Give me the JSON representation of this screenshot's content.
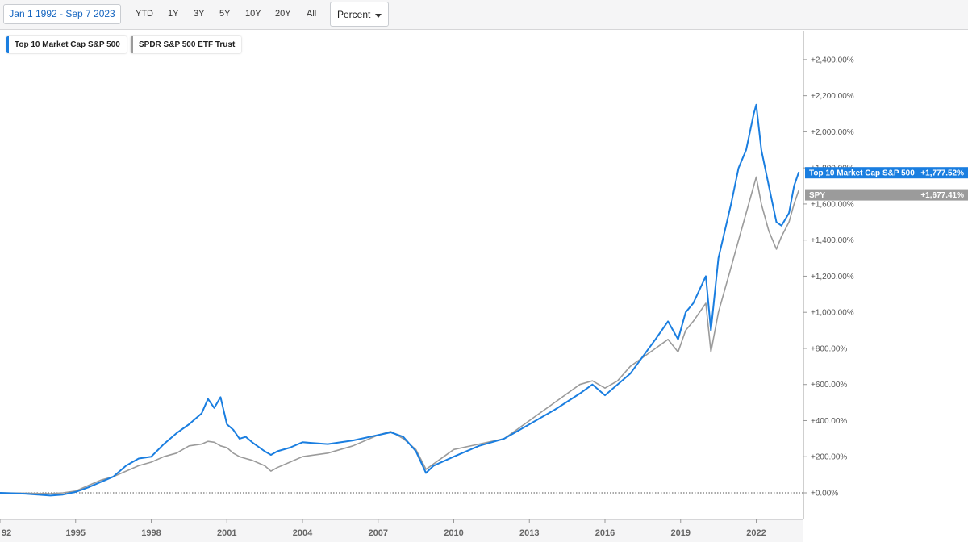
{
  "toolbar": {
    "date_range": "Jan 1 1992 - Sep 7 2023",
    "ranges": [
      "YTD",
      "1Y",
      "3Y",
      "5Y",
      "10Y",
      "20Y",
      "All"
    ],
    "scale_select": "Percent"
  },
  "legend": [
    {
      "label": "Top 10 Market Cap S&P 500",
      "color": "#1a7ee0"
    },
    {
      "label": "SPDR S&P 500 ETF Trust",
      "color": "#9b9b9b"
    }
  ],
  "colors": {
    "top10": "#1a7ee0",
    "spy": "#9b9b9b",
    "zero_line": "#555555"
  },
  "chart_data": {
    "type": "line",
    "xlabel": "",
    "ylabel": "",
    "ylim": [
      -20,
      2500
    ],
    "xlim": [
      1992,
      2023.69
    ],
    "x_ticks": [
      "92",
      "1995",
      "1998",
      "2001",
      "2004",
      "2007",
      "2010",
      "2013",
      "2016",
      "2019",
      "2022"
    ],
    "y_ticks": [
      "+0.00%",
      "+200.00%",
      "+400.00%",
      "+600.00%",
      "+800.00%",
      "+1,000.00%",
      "+1,200.00%",
      "+1,400.00%",
      "+1,600.00%",
      "+1,800.00%",
      "+2,000.00%",
      "+2,200.00%",
      "+2,400.00%"
    ],
    "zero_line": {
      "value": 0,
      "style": "dotted"
    },
    "grid": false,
    "series": [
      {
        "name": "Top 10 Market Cap S&P 500",
        "tag_label": "Top 10 Market Cap S&P 500",
        "last_value_label": "+1,777.52%",
        "last_value": 1777.52,
        "points": [
          [
            1992.0,
            0
          ],
          [
            1993.0,
            -5
          ],
          [
            1994.0,
            -15
          ],
          [
            1994.5,
            -10
          ],
          [
            1995.0,
            5
          ],
          [
            1995.5,
            30
          ],
          [
            1996.0,
            60
          ],
          [
            1996.5,
            90
          ],
          [
            1997.0,
            150
          ],
          [
            1997.5,
            190
          ],
          [
            1998.0,
            200
          ],
          [
            1998.5,
            270
          ],
          [
            1999.0,
            330
          ],
          [
            1999.5,
            380
          ],
          [
            2000.0,
            440
          ],
          [
            2000.25,
            520
          ],
          [
            2000.5,
            470
          ],
          [
            2000.75,
            530
          ],
          [
            2001.0,
            380
          ],
          [
            2001.25,
            350
          ],
          [
            2001.5,
            300
          ],
          [
            2001.75,
            310
          ],
          [
            2002.0,
            280
          ],
          [
            2002.5,
            230
          ],
          [
            2002.75,
            210
          ],
          [
            2003.0,
            230
          ],
          [
            2003.5,
            250
          ],
          [
            2004.0,
            280
          ],
          [
            2005.0,
            270
          ],
          [
            2006.0,
            290
          ],
          [
            2007.0,
            320
          ],
          [
            2007.5,
            335
          ],
          [
            2008.0,
            310
          ],
          [
            2008.5,
            230
          ],
          [
            2008.9,
            110
          ],
          [
            2009.2,
            150
          ],
          [
            2010.0,
            200
          ],
          [
            2011.0,
            260
          ],
          [
            2012.0,
            300
          ],
          [
            2013.0,
            380
          ],
          [
            2014.0,
            460
          ],
          [
            2015.0,
            550
          ],
          [
            2015.5,
            600
          ],
          [
            2016.0,
            540
          ],
          [
            2016.5,
            600
          ],
          [
            2017.0,
            660
          ],
          [
            2018.0,
            850
          ],
          [
            2018.5,
            950
          ],
          [
            2018.9,
            850
          ],
          [
            2019.2,
            1000
          ],
          [
            2019.5,
            1050
          ],
          [
            2020.0,
            1200
          ],
          [
            2020.2,
            900
          ],
          [
            2020.5,
            1300
          ],
          [
            2021.0,
            1600
          ],
          [
            2021.3,
            1800
          ],
          [
            2021.6,
            1900
          ],
          [
            2021.9,
            2100
          ],
          [
            2022.0,
            2150
          ],
          [
            2022.2,
            1900
          ],
          [
            2022.5,
            1700
          ],
          [
            2022.8,
            1500
          ],
          [
            2023.0,
            1480
          ],
          [
            2023.3,
            1550
          ],
          [
            2023.5,
            1700
          ],
          [
            2023.69,
            1777.52
          ]
        ]
      },
      {
        "name": "SPDR S&P 500 ETF Trust",
        "tag_label": "SPY",
        "last_value_label": "+1,677.41%",
        "last_value": 1677.41,
        "points": [
          [
            1992.0,
            0
          ],
          [
            1993.0,
            -2
          ],
          [
            1994.0,
            -5
          ],
          [
            1994.5,
            0
          ],
          [
            1995.0,
            10
          ],
          [
            1995.5,
            40
          ],
          [
            1996.0,
            70
          ],
          [
            1996.5,
            90
          ],
          [
            1997.0,
            120
          ],
          [
            1997.5,
            150
          ],
          [
            1998.0,
            170
          ],
          [
            1998.5,
            200
          ],
          [
            1999.0,
            220
          ],
          [
            1999.5,
            260
          ],
          [
            2000.0,
            270
          ],
          [
            2000.25,
            285
          ],
          [
            2000.5,
            280
          ],
          [
            2000.75,
            260
          ],
          [
            2001.0,
            250
          ],
          [
            2001.25,
            220
          ],
          [
            2001.5,
            200
          ],
          [
            2001.75,
            190
          ],
          [
            2002.0,
            180
          ],
          [
            2002.5,
            150
          ],
          [
            2002.75,
            120
          ],
          [
            2003.0,
            140
          ],
          [
            2003.5,
            170
          ],
          [
            2004.0,
            200
          ],
          [
            2005.0,
            220
          ],
          [
            2006.0,
            260
          ],
          [
            2007.0,
            320
          ],
          [
            2007.5,
            340
          ],
          [
            2008.0,
            300
          ],
          [
            2008.5,
            240
          ],
          [
            2008.9,
            130
          ],
          [
            2009.2,
            160
          ],
          [
            2010.0,
            240
          ],
          [
            2011.0,
            270
          ],
          [
            2012.0,
            300
          ],
          [
            2013.0,
            400
          ],
          [
            2014.0,
            500
          ],
          [
            2015.0,
            600
          ],
          [
            2015.5,
            620
          ],
          [
            2016.0,
            580
          ],
          [
            2016.5,
            620
          ],
          [
            2017.0,
            700
          ],
          [
            2018.0,
            800
          ],
          [
            2018.5,
            850
          ],
          [
            2018.9,
            780
          ],
          [
            2019.2,
            900
          ],
          [
            2019.5,
            950
          ],
          [
            2020.0,
            1050
          ],
          [
            2020.2,
            780
          ],
          [
            2020.5,
            1000
          ],
          [
            2021.0,
            1250
          ],
          [
            2021.3,
            1400
          ],
          [
            2021.6,
            1550
          ],
          [
            2021.9,
            1700
          ],
          [
            2022.0,
            1750
          ],
          [
            2022.2,
            1600
          ],
          [
            2022.5,
            1450
          ],
          [
            2022.8,
            1350
          ],
          [
            2023.0,
            1420
          ],
          [
            2023.3,
            1500
          ],
          [
            2023.5,
            1600
          ],
          [
            2023.69,
            1677.41
          ]
        ]
      }
    ]
  }
}
